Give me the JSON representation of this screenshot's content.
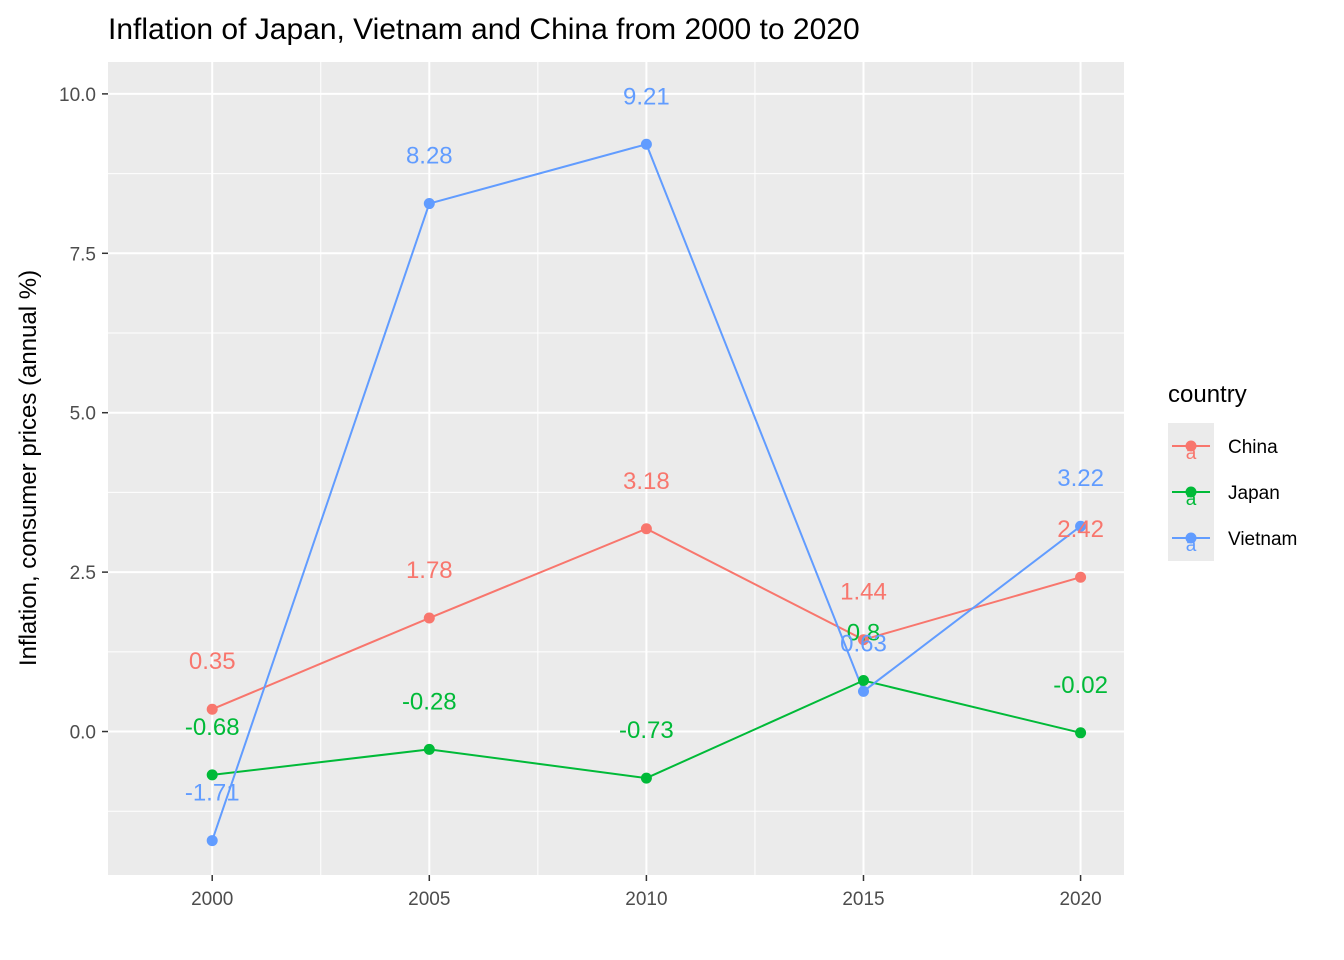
{
  "chart_data": {
    "type": "line",
    "title": "Inflation of Japan, Vietnam and China from 2000 to 2020",
    "xlabel": "",
    "ylabel": "Inflation, consumer prices (annual %)",
    "x": [
      2000,
      2005,
      2010,
      2015,
      2020
    ],
    "x_tick_labels": [
      "2000",
      "2005",
      "2010",
      "2015",
      "2020"
    ],
    "y_ticks": [
      0.0,
      2.5,
      5.0,
      7.5,
      10.0
    ],
    "y_tick_labels": [
      "0.0",
      "2.5",
      "5.0",
      "7.5",
      "10.0"
    ],
    "xlim": [
      1997.6,
      2021.0
    ],
    "ylim": [
      -2.25,
      10.5
    ],
    "grid": true,
    "legend": {
      "title": "country",
      "position": "right"
    },
    "series": [
      {
        "name": "China",
        "color": "#F8766D",
        "values": [
          0.35,
          1.78,
          3.18,
          1.44,
          2.42
        ],
        "labels": [
          "0.35",
          "1.78",
          "3.18",
          "1.44",
          "2.42"
        ]
      },
      {
        "name": "Japan",
        "color": "#00BA38",
        "values": [
          -0.68,
          -0.28,
          -0.73,
          0.8,
          -0.02
        ],
        "labels": [
          "-0.68",
          "-0.28",
          "-0.73",
          "0.8",
          "-0.02"
        ]
      },
      {
        "name": "Vietnam",
        "color": "#619CFF",
        "values": [
          -1.71,
          8.28,
          9.21,
          0.63,
          3.22
        ],
        "labels": [
          "-1.71",
          "8.28",
          "9.21",
          "0.63",
          "3.22"
        ]
      }
    ]
  }
}
